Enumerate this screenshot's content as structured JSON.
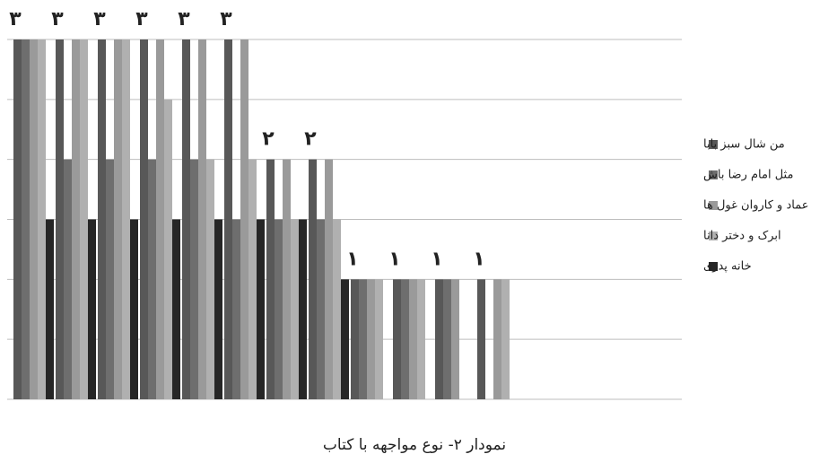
{
  "chart_data": {
    "type": "bar",
    "title": "نمودار ۲- نوع مواجهه با کتاب",
    "categories": [
      null,
      null,
      null,
      null,
      null,
      null,
      null,
      null,
      null,
      null,
      null,
      null
    ],
    "series": [
      {
        "name": "من شال سبز بابا",
        "color": "#585858",
        "values": [
          3,
          3,
          3,
          3,
          3,
          3,
          2,
          2,
          1,
          1,
          1,
          1
        ]
      },
      {
        "name": "مثل امام رضا باش",
        "color": "#6e6e6e",
        "values": [
          3,
          2,
          2,
          2,
          2,
          1.5,
          1.5,
          1.5,
          1,
          1,
          1,
          0
        ]
      },
      {
        "name": "عماد و کاروان غول ها",
        "color": "#9a9a9a",
        "values": [
          3,
          3,
          3,
          3,
          3,
          3,
          2,
          2,
          1,
          1,
          1,
          1
        ]
      },
      {
        "name": "ابرک و دختر دانا",
        "color": "#b0b0b0",
        "values": [
          3,
          3,
          3,
          2.5,
          2,
          2,
          1.5,
          1.5,
          1,
          1,
          0,
          1
        ]
      },
      {
        "name": "خانه پدری",
        "color": "#262626",
        "values": [
          1.5,
          1.5,
          1.5,
          1.5,
          1.5,
          1.5,
          1.5,
          1,
          0,
          0,
          0,
          0
        ]
      }
    ],
    "annotations": [
      "٣",
      "٣",
      "٣",
      "٣",
      "٣",
      "٣",
      "٢",
      "٢",
      "١",
      "١",
      "١",
      "١"
    ],
    "ylim": [
      0,
      3
    ],
    "yticks": [
      0,
      0.5,
      1,
      1.5,
      2,
      2.5,
      3
    ],
    "grid": true,
    "legend": "right"
  }
}
